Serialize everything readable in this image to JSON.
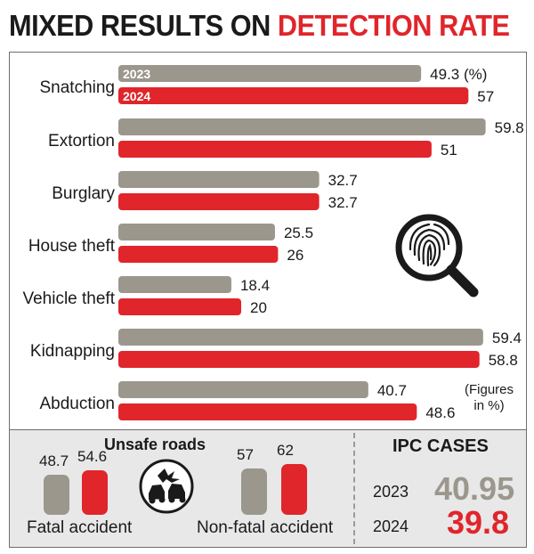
{
  "title": {
    "part1": "MIXED RESULTS ON",
    "part2": "DETECTION RATE"
  },
  "colors": {
    "y2023": "#9b978d",
    "y2024": "#e0252b",
    "text": "#1a1a1a",
    "panel": "#e8e8e8"
  },
  "chart_data": [
    {
      "type": "bar",
      "orientation": "horizontal",
      "categories": [
        "Snatching",
        "Extortion",
        "Burglary",
        "House theft",
        "Vehicle theft",
        "Kidnapping",
        "Abduction"
      ],
      "series": [
        {
          "name": "2023",
          "values": [
            49.3,
            59.8,
            32.7,
            25.5,
            18.4,
            59.4,
            40.7
          ],
          "labels": [
            "49.3 (%)",
            "59.8",
            "32.7",
            "25.5",
            "18.4",
            "59.4",
            "40.7"
          ]
        },
        {
          "name": "2024",
          "values": [
            57,
            51,
            32.7,
            26,
            20,
            58.8,
            48.6
          ],
          "labels": [
            "57",
            "51",
            "32.7",
            "26",
            "20",
            "58.8",
            "48.6"
          ]
        }
      ],
      "note": [
        "(Figures",
        "in %)"
      ],
      "icon": "fingerprint-magnifier-icon"
    },
    {
      "type": "bar",
      "title": "Unsafe roads",
      "categories": [
        "Fatal accident",
        "Non-fatal accident"
      ],
      "series": [
        {
          "name": "2023",
          "values": [
            48.7,
            57
          ],
          "labels": [
            "48.7",
            "57"
          ]
        },
        {
          "name": "2024",
          "values": [
            54.6,
            62
          ],
          "labels": [
            "54.6",
            "62"
          ]
        }
      ],
      "icon": "car-crash-icon"
    },
    {
      "type": "table",
      "title": "IPC CASES",
      "rows": [
        {
          "year": "2023",
          "value": "40.95"
        },
        {
          "year": "2024",
          "value": "39.8"
        }
      ]
    }
  ]
}
